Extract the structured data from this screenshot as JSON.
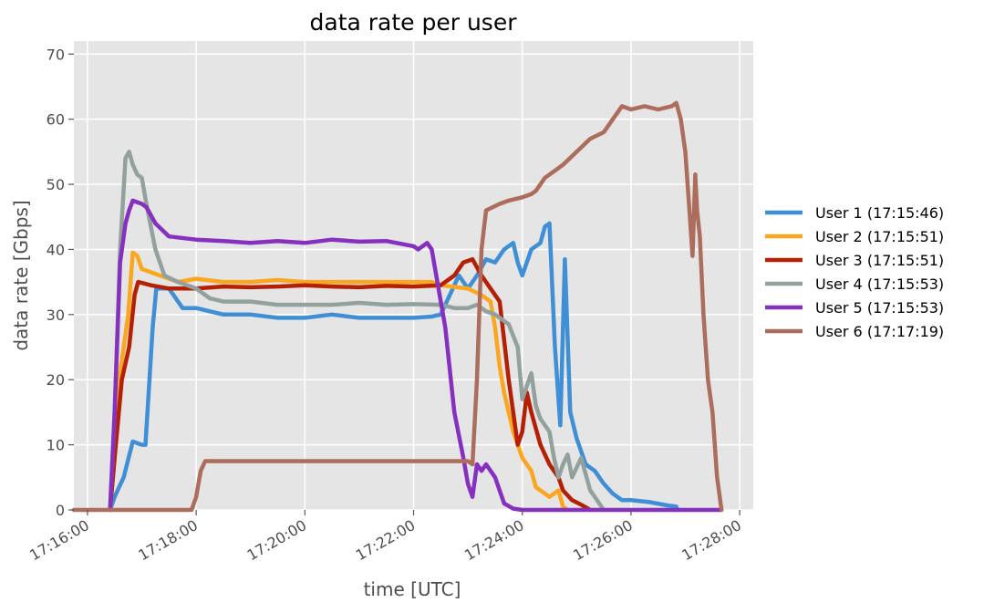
{
  "chart_data": {
    "type": "line",
    "title": "data rate per user",
    "xlabel": "time [UTC]",
    "ylabel": "data rate [Gbps]",
    "xlim": [
      "17:15:45",
      "17:28:15"
    ],
    "ylim": [
      0,
      72
    ],
    "x_ticks": [
      "17:16:00",
      "17:18:00",
      "17:20:00",
      "17:22:00",
      "17:24:00",
      "17:26:00",
      "17:28:00"
    ],
    "y_ticks": [
      0,
      10,
      20,
      30,
      40,
      50,
      60,
      70
    ],
    "grid": true,
    "legend_placement": "right",
    "series": [
      {
        "name": "User 1 (17:15:46)",
        "color": "#3f8fd6",
        "points": [
          [
            "17:16:25",
            0
          ],
          [
            "17:16:30",
            2
          ],
          [
            "17:16:40",
            5
          ],
          [
            "17:16:50",
            10.5
          ],
          [
            "17:17:00",
            10
          ],
          [
            "17:17:04",
            10
          ],
          [
            "17:17:12",
            28
          ],
          [
            "17:17:16",
            34
          ],
          [
            "17:17:30",
            34
          ],
          [
            "17:17:45",
            31
          ],
          [
            "17:18:00",
            31
          ],
          [
            "17:18:30",
            30
          ],
          [
            "17:19:00",
            30
          ],
          [
            "17:19:30",
            29.5
          ],
          [
            "17:20:00",
            29.5
          ],
          [
            "17:20:30",
            30
          ],
          [
            "17:21:00",
            29.5
          ],
          [
            "17:21:30",
            29.5
          ],
          [
            "17:22:00",
            29.5
          ],
          [
            "17:22:20",
            29.7
          ],
          [
            "17:22:30",
            30
          ],
          [
            "17:22:40",
            33
          ],
          [
            "17:22:50",
            36
          ],
          [
            "17:23:00",
            34
          ],
          [
            "17:23:10",
            36
          ],
          [
            "17:23:20",
            38.5
          ],
          [
            "17:23:30",
            38
          ],
          [
            "17:23:40",
            40
          ],
          [
            "17:23:50",
            41
          ],
          [
            "17:23:55",
            38
          ],
          [
            "17:24:00",
            36
          ],
          [
            "17:24:10",
            40
          ],
          [
            "17:24:20",
            41
          ],
          [
            "17:24:25",
            43.5
          ],
          [
            "17:24:30",
            44
          ],
          [
            "17:24:36",
            25
          ],
          [
            "17:24:42",
            13
          ],
          [
            "17:24:47",
            38.5
          ],
          [
            "17:24:53",
            15
          ],
          [
            "17:25:00",
            11
          ],
          [
            "17:25:10",
            7
          ],
          [
            "17:25:20",
            6
          ],
          [
            "17:25:30",
            4
          ],
          [
            "17:25:40",
            2.5
          ],
          [
            "17:25:50",
            1.5
          ],
          [
            "17:26:00",
            1.5
          ],
          [
            "17:26:20",
            1.2
          ],
          [
            "17:26:40",
            0.7
          ],
          [
            "17:26:50",
            0.5
          ],
          [
            "17:26:51",
            0
          ]
        ]
      },
      {
        "name": "User 2 (17:15:51)",
        "color": "#fba61f",
        "points": [
          [
            "17:16:25",
            0
          ],
          [
            "17:16:30",
            8
          ],
          [
            "17:16:35",
            20
          ],
          [
            "17:16:45",
            30
          ],
          [
            "17:16:50",
            39.5
          ],
          [
            "17:16:55",
            39
          ],
          [
            "17:17:00",
            37
          ],
          [
            "17:17:20",
            36
          ],
          [
            "17:17:40",
            35
          ],
          [
            "17:18:00",
            35.5
          ],
          [
            "17:18:30",
            35
          ],
          [
            "17:19:00",
            35
          ],
          [
            "17:19:30",
            35.3
          ],
          [
            "17:20:00",
            35
          ],
          [
            "17:20:30",
            35
          ],
          [
            "17:21:00",
            35
          ],
          [
            "17:21:30",
            35
          ],
          [
            "17:22:00",
            35
          ],
          [
            "17:22:20",
            35
          ],
          [
            "17:22:30",
            34.5
          ],
          [
            "17:23:00",
            34
          ],
          [
            "17:23:15",
            33
          ],
          [
            "17:23:25",
            32
          ],
          [
            "17:23:30",
            28
          ],
          [
            "17:23:35",
            22
          ],
          [
            "17:23:40",
            18
          ],
          [
            "17:23:50",
            12
          ],
          [
            "17:24:00",
            8
          ],
          [
            "17:24:10",
            6
          ],
          [
            "17:24:15",
            3.5
          ],
          [
            "17:24:30",
            2
          ],
          [
            "17:24:40",
            3
          ],
          [
            "17:24:45",
            0.5
          ],
          [
            "17:24:50",
            0
          ]
        ]
      },
      {
        "name": "User 3 (17:15:51)",
        "color": "#b52005",
        "points": [
          [
            "17:16:25",
            0
          ],
          [
            "17:16:30",
            8
          ],
          [
            "17:16:38",
            20
          ],
          [
            "17:16:46",
            25
          ],
          [
            "17:16:52",
            33
          ],
          [
            "17:16:56",
            35
          ],
          [
            "17:17:10",
            34.5
          ],
          [
            "17:17:30",
            34
          ],
          [
            "17:18:00",
            34
          ],
          [
            "17:18:30",
            34.3
          ],
          [
            "17:19:00",
            34.2
          ],
          [
            "17:19:30",
            34.3
          ],
          [
            "17:20:00",
            34.5
          ],
          [
            "17:20:30",
            34.3
          ],
          [
            "17:21:00",
            34.2
          ],
          [
            "17:21:30",
            34.4
          ],
          [
            "17:22:00",
            34.3
          ],
          [
            "17:22:30",
            34.5
          ],
          [
            "17:22:45",
            36
          ],
          [
            "17:22:55",
            38
          ],
          [
            "17:23:05",
            38.5
          ],
          [
            "17:23:15",
            36
          ],
          [
            "17:23:25",
            34
          ],
          [
            "17:23:35",
            32
          ],
          [
            "17:23:45",
            20
          ],
          [
            "17:23:55",
            10
          ],
          [
            "17:24:00",
            12
          ],
          [
            "17:24:05",
            18
          ],
          [
            "17:24:10",
            15
          ],
          [
            "17:24:20",
            10
          ],
          [
            "17:24:30",
            7
          ],
          [
            "17:24:40",
            5
          ],
          [
            "17:24:45",
            3
          ],
          [
            "17:24:55",
            1.5
          ],
          [
            "17:25:05",
            0.8
          ],
          [
            "17:25:15",
            0
          ]
        ]
      },
      {
        "name": "User 4 (17:15:53)",
        "color": "#93a19e",
        "points": [
          [
            "17:16:25",
            0
          ],
          [
            "17:16:30",
            15
          ],
          [
            "17:16:36",
            40
          ],
          [
            "17:16:42",
            54
          ],
          [
            "17:16:46",
            55
          ],
          [
            "17:16:50",
            53
          ],
          [
            "17:16:55",
            51.5
          ],
          [
            "17:17:00",
            51
          ],
          [
            "17:17:05",
            47
          ],
          [
            "17:17:15",
            40
          ],
          [
            "17:17:25",
            36
          ],
          [
            "17:17:40",
            35
          ],
          [
            "17:18:00",
            34
          ],
          [
            "17:18:15",
            32.5
          ],
          [
            "17:18:30",
            32
          ],
          [
            "17:19:00",
            32
          ],
          [
            "17:19:30",
            31.5
          ],
          [
            "17:20:00",
            31.5
          ],
          [
            "17:20:30",
            31.5
          ],
          [
            "17:21:00",
            31.8
          ],
          [
            "17:21:30",
            31.5
          ],
          [
            "17:22:00",
            31.6
          ],
          [
            "17:22:30",
            31.5
          ],
          [
            "17:22:45",
            31
          ],
          [
            "17:23:00",
            31
          ],
          [
            "17:23:10",
            31.5
          ],
          [
            "17:23:20",
            30.5
          ],
          [
            "17:23:30",
            30
          ],
          [
            "17:23:45",
            28.5
          ],
          [
            "17:23:55",
            25
          ],
          [
            "17:24:00",
            17
          ],
          [
            "17:24:10",
            21
          ],
          [
            "17:24:15",
            16
          ],
          [
            "17:24:20",
            14
          ],
          [
            "17:24:30",
            12
          ],
          [
            "17:24:35",
            8
          ],
          [
            "17:24:40",
            5
          ],
          [
            "17:24:45",
            7
          ],
          [
            "17:24:50",
            8.5
          ],
          [
            "17:24:55",
            5
          ],
          [
            "17:25:00",
            6.5
          ],
          [
            "17:25:05",
            8
          ],
          [
            "17:25:10",
            5.5
          ],
          [
            "17:25:15",
            3
          ],
          [
            "17:25:20",
            2
          ],
          [
            "17:25:25",
            1
          ],
          [
            "17:25:30",
            0
          ]
        ]
      },
      {
        "name": "User 5 (17:15:53)",
        "color": "#8630c0",
        "points": [
          [
            "17:16:25",
            0
          ],
          [
            "17:16:30",
            15
          ],
          [
            "17:16:36",
            38
          ],
          [
            "17:16:42",
            44
          ],
          [
            "17:16:46",
            46
          ],
          [
            "17:16:50",
            47.5
          ],
          [
            "17:17:00",
            47
          ],
          [
            "17:17:05",
            46.5
          ],
          [
            "17:17:15",
            44
          ],
          [
            "17:17:30",
            42
          ],
          [
            "17:18:00",
            41.5
          ],
          [
            "17:18:30",
            41.3
          ],
          [
            "17:19:00",
            41
          ],
          [
            "17:19:30",
            41.3
          ],
          [
            "17:20:00",
            41
          ],
          [
            "17:20:30",
            41.5
          ],
          [
            "17:21:00",
            41.2
          ],
          [
            "17:21:30",
            41.3
          ],
          [
            "17:22:00",
            40.5
          ],
          [
            "17:22:05",
            40
          ],
          [
            "17:22:15",
            41
          ],
          [
            "17:22:20",
            40
          ],
          [
            "17:22:35",
            28
          ],
          [
            "17:22:45",
            15
          ],
          [
            "17:22:55",
            8
          ],
          [
            "17:23:00",
            4
          ],
          [
            "17:23:05",
            2
          ],
          [
            "17:23:10",
            7
          ],
          [
            "17:23:15",
            6
          ],
          [
            "17:23:20",
            7
          ],
          [
            "17:23:30",
            5
          ],
          [
            "17:23:40",
            1
          ],
          [
            "17:23:50",
            0.2
          ],
          [
            "17:24:00",
            0
          ],
          [
            "17:25:00",
            0
          ],
          [
            "17:26:00",
            0
          ],
          [
            "17:27:00",
            0
          ],
          [
            "17:27:40",
            0
          ]
        ]
      },
      {
        "name": "User 6 (17:17:19)",
        "color": "#ad6d5c",
        "points": [
          [
            "17:15:45",
            0
          ],
          [
            "17:16:30",
            0
          ],
          [
            "17:17:00",
            0
          ],
          [
            "17:17:30",
            0
          ],
          [
            "17:17:55",
            0
          ],
          [
            "17:18:00",
            2
          ],
          [
            "17:18:05",
            6
          ],
          [
            "17:18:10",
            7.5
          ],
          [
            "17:18:30",
            7.5
          ],
          [
            "17:19:00",
            7.5
          ],
          [
            "17:19:30",
            7.5
          ],
          [
            "17:20:00",
            7.5
          ],
          [
            "17:20:30",
            7.5
          ],
          [
            "17:21:00",
            7.5
          ],
          [
            "17:21:30",
            7.5
          ],
          [
            "17:22:00",
            7.5
          ],
          [
            "17:22:30",
            7.5
          ],
          [
            "17:23:00",
            7.5
          ],
          [
            "17:23:05",
            7
          ],
          [
            "17:23:10",
            20
          ],
          [
            "17:23:15",
            40
          ],
          [
            "17:23:20",
            46
          ],
          [
            "17:23:35",
            47
          ],
          [
            "17:23:45",
            47.5
          ],
          [
            "17:24:00",
            48
          ],
          [
            "17:24:10",
            48.5
          ],
          [
            "17:24:15",
            49
          ],
          [
            "17:24:20",
            50
          ],
          [
            "17:24:25",
            51
          ],
          [
            "17:24:35",
            52
          ],
          [
            "17:24:45",
            53
          ],
          [
            "17:25:00",
            55
          ],
          [
            "17:25:15",
            57
          ],
          [
            "17:25:30",
            58
          ],
          [
            "17:25:40",
            60
          ],
          [
            "17:25:50",
            62
          ],
          [
            "17:26:00",
            61.5
          ],
          [
            "17:26:15",
            62
          ],
          [
            "17:26:30",
            61.5
          ],
          [
            "17:26:45",
            62
          ],
          [
            "17:26:50",
            62.5
          ],
          [
            "17:26:55",
            60
          ],
          [
            "17:27:00",
            55
          ],
          [
            "17:27:04",
            47
          ],
          [
            "17:27:08",
            39
          ],
          [
            "17:27:11",
            51.5
          ],
          [
            "17:27:13",
            46
          ],
          [
            "17:27:16",
            42
          ],
          [
            "17:27:20",
            30
          ],
          [
            "17:27:25",
            20
          ],
          [
            "17:27:30",
            15
          ],
          [
            "17:27:35",
            5
          ],
          [
            "17:27:40",
            0
          ]
        ]
      }
    ]
  }
}
